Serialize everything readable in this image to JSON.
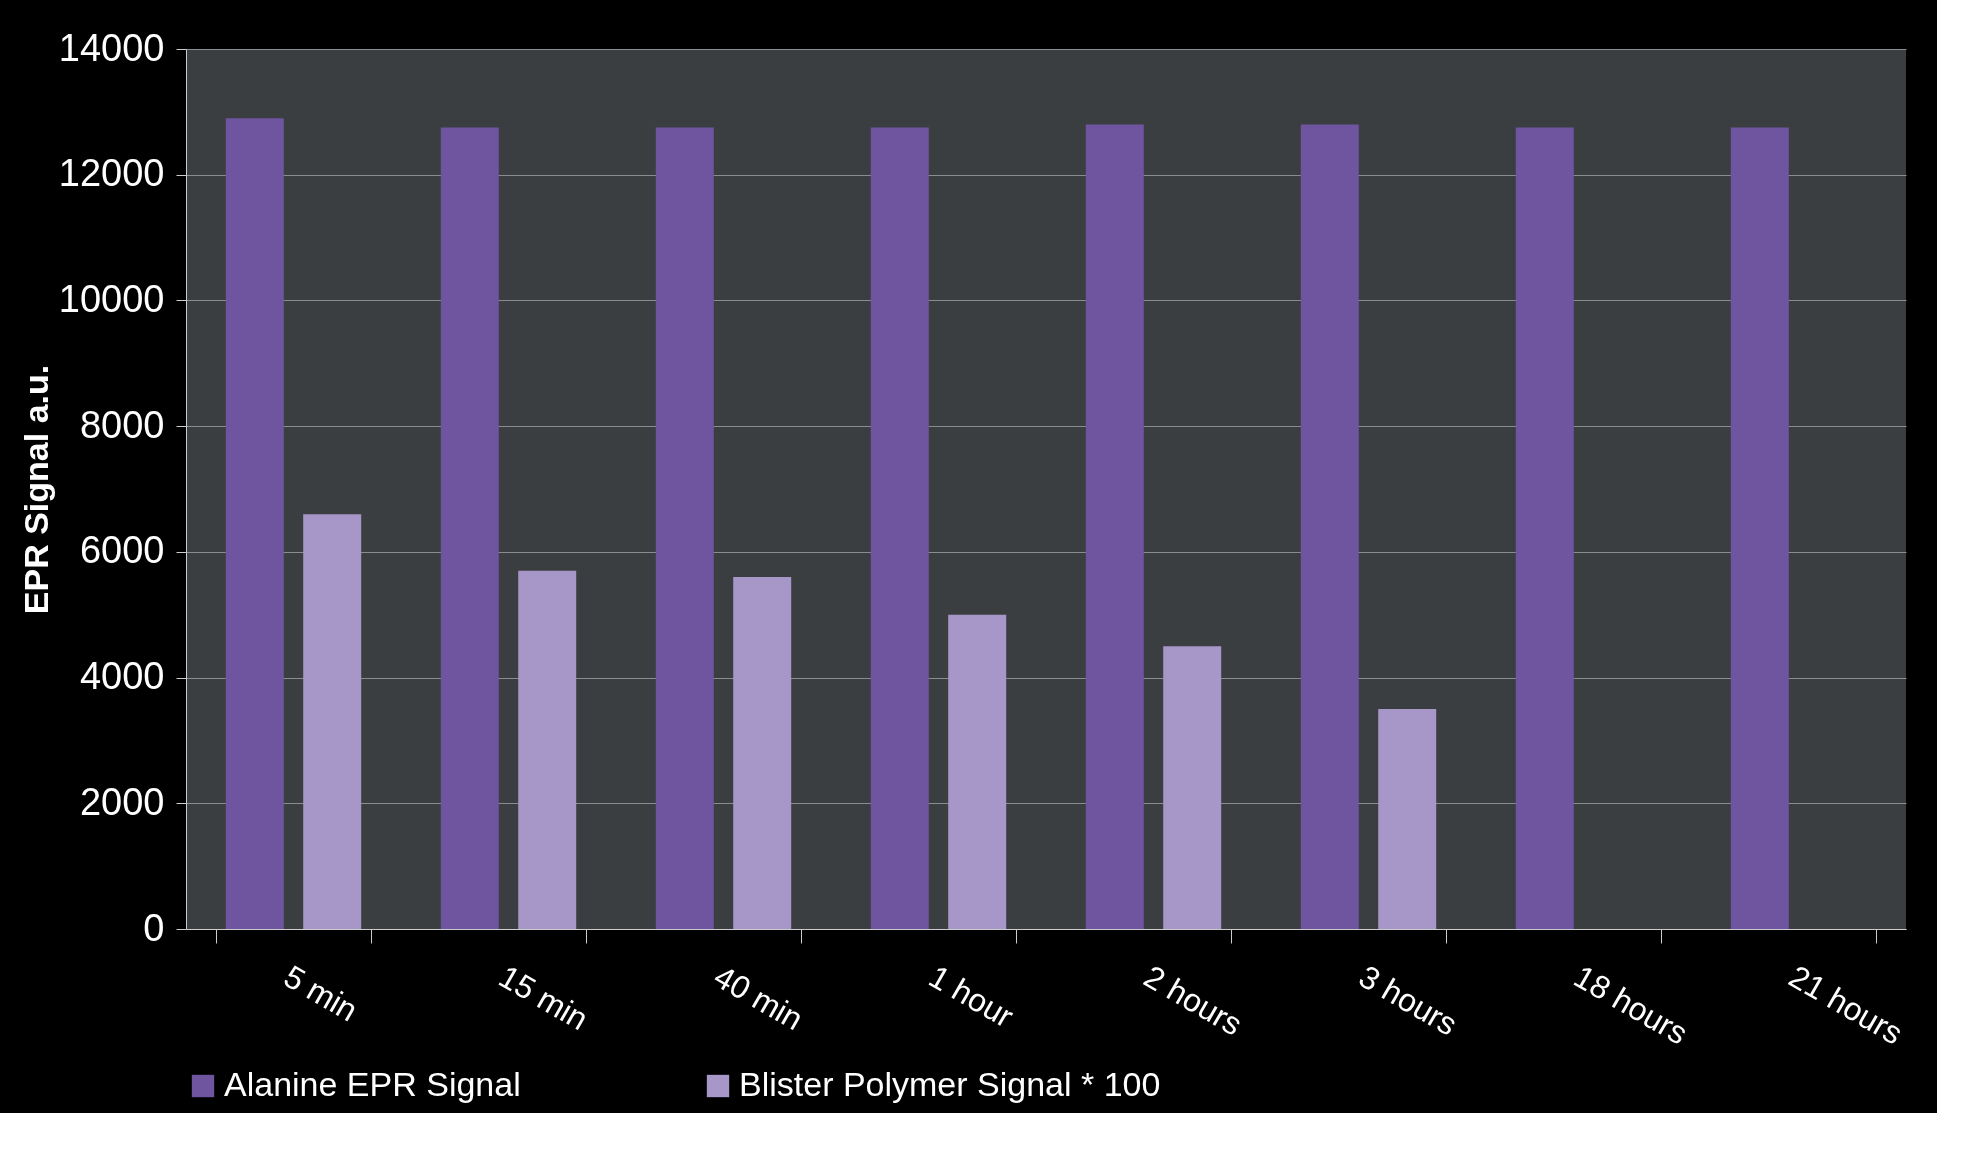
{
  "chart_data": {
    "type": "bar",
    "ylabel": "EPR Signal a.u.",
    "categories": [
      "5 min",
      "15 min",
      "40 min",
      "1 hour",
      "2 hours",
      "3 hours",
      "18 hours",
      "21 hours"
    ],
    "series": [
      {
        "name": "Alanine EPR Signal",
        "color": "#6f55a0",
        "values": [
          12900,
          12750,
          12750,
          12750,
          12800,
          12800,
          12750,
          12750
        ]
      },
      {
        "name": "Blister Polymer Signal * 100",
        "color": "#a796c8",
        "values": [
          6600,
          5700,
          5600,
          5000,
          4500,
          3500,
          null,
          null
        ]
      }
    ],
    "ylim": [
      0,
      14000
    ],
    "yticks": [
      0,
      2000,
      4000,
      6000,
      8000,
      10000,
      12000,
      14000
    ],
    "grid": "y",
    "legend": "bottom"
  }
}
